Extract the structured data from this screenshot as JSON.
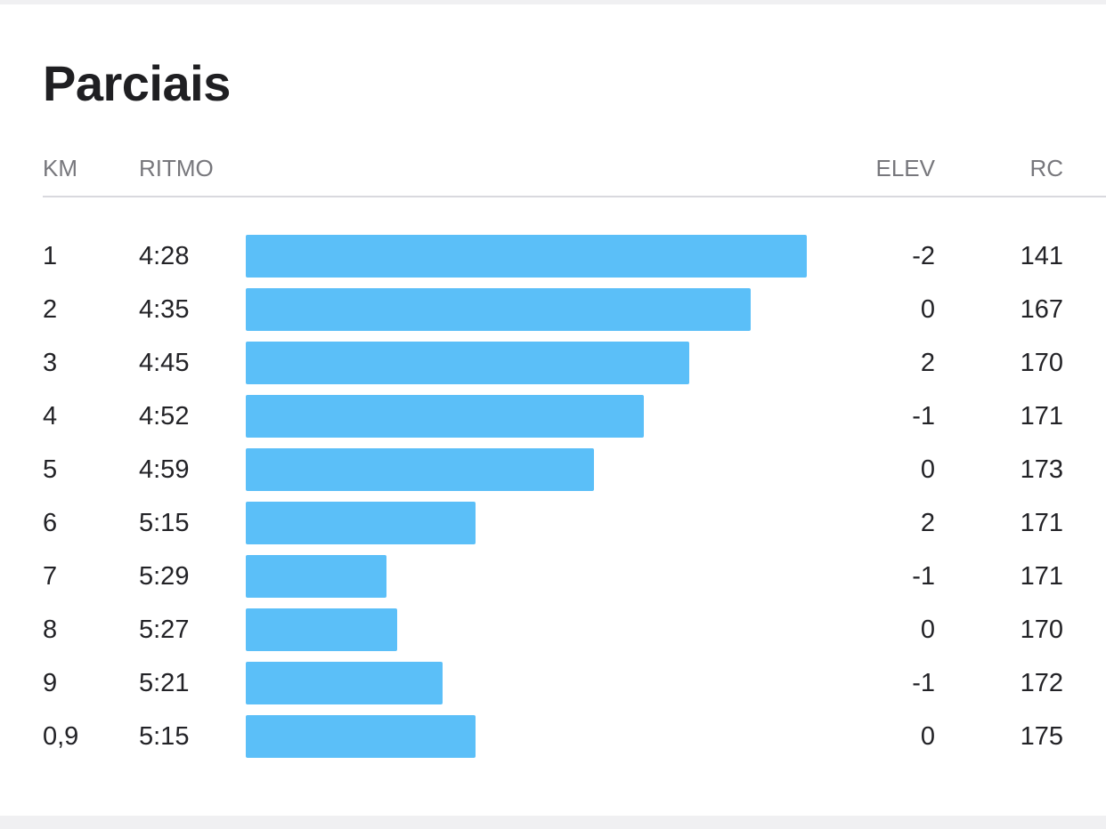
{
  "splits": {
    "title": "Parciais",
    "columns": {
      "km": "KM",
      "pace": "RITMO",
      "elev": "ELEV",
      "hr": "RC"
    },
    "bar_color": "#5bbff8",
    "rows": [
      {
        "km": "1",
        "pace": "4:28",
        "elev": "-2",
        "hr": "141",
        "relative_speed": 1.0
      },
      {
        "km": "2",
        "pace": "4:35",
        "elev": "0",
        "hr": "167",
        "relative_speed": 0.9
      },
      {
        "km": "3",
        "pace": "4:45",
        "elev": "2",
        "hr": "170",
        "relative_speed": 0.79
      },
      {
        "km": "4",
        "pace": "4:52",
        "elev": "-1",
        "hr": "171",
        "relative_speed": 0.71
      },
      {
        "km": "5",
        "pace": "4:59",
        "elev": "0",
        "hr": "173",
        "relative_speed": 0.62
      },
      {
        "km": "6",
        "pace": "5:15",
        "elev": "2",
        "hr": "171",
        "relative_speed": 0.41
      },
      {
        "km": "7",
        "pace": "5:29",
        "elev": "-1",
        "hr": "171",
        "relative_speed": 0.25
      },
      {
        "km": "8",
        "pace": "5:27",
        "elev": "0",
        "hr": "170",
        "relative_speed": 0.27
      },
      {
        "km": "9",
        "pace": "5:21",
        "elev": "-1",
        "hr": "172",
        "relative_speed": 0.35
      },
      {
        "km": "0,9",
        "pace": "5:15",
        "elev": "0",
        "hr": "175",
        "relative_speed": 0.41
      }
    ]
  }
}
